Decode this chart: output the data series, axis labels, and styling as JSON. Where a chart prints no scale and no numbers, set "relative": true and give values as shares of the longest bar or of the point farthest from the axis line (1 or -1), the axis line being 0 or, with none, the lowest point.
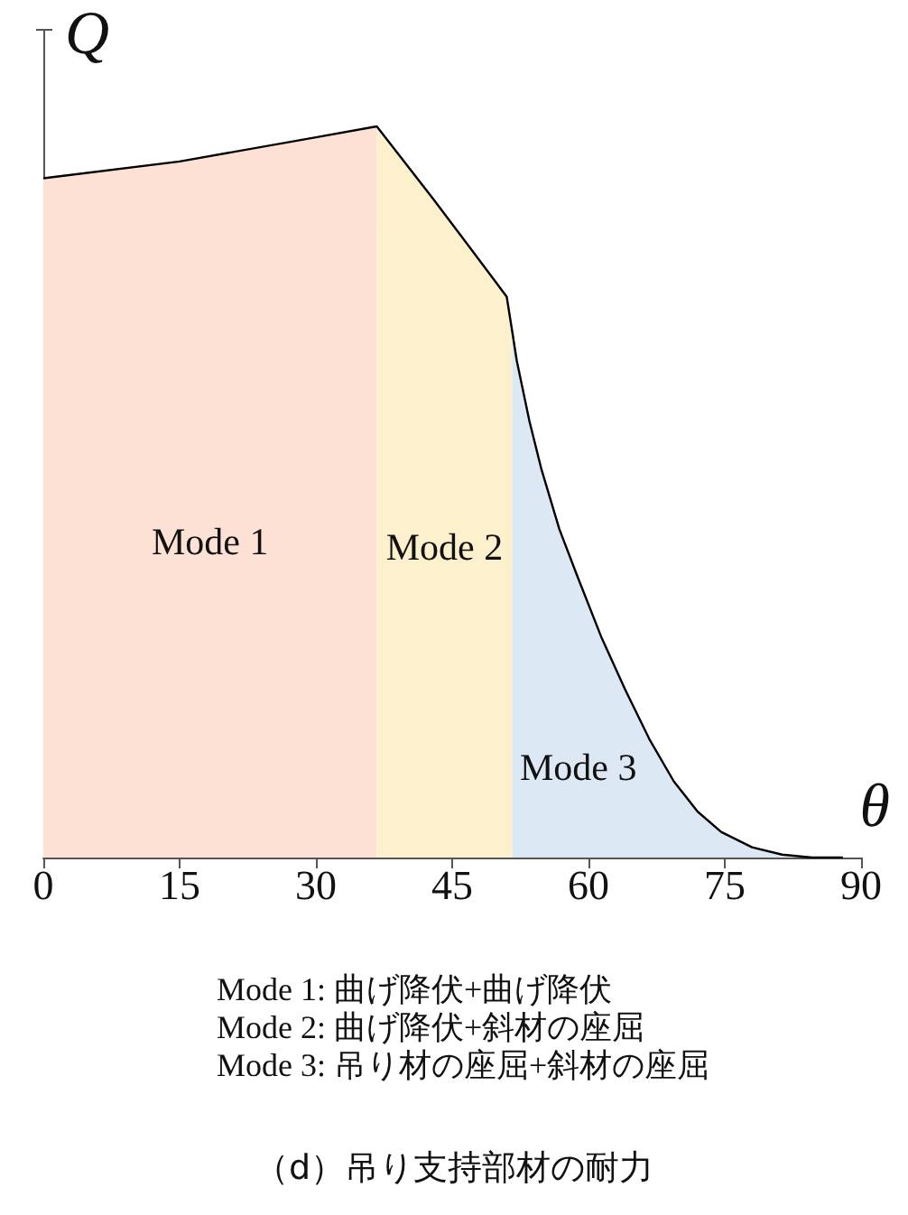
{
  "chart_data": {
    "type": "area",
    "title": "（d）吊り支持部材の耐力",
    "xlabel": "θ",
    "ylabel": "Q",
    "relative": true,
    "xlim": [
      0,
      90
    ],
    "xticks": [
      0,
      15,
      30,
      45,
      60,
      75,
      90
    ],
    "grid": false,
    "marker": "none",
    "series": [
      {
        "color": "#fde1d4",
        "x": [
          0,
          15,
          30,
          36.7
        ],
        "values": [
          0.929,
          0.952,
          0.985,
          1
        ]
      },
      {
        "color": "#fdf0cc",
        "x": [
          36.7,
          42.9,
          49.5,
          51.0,
          51.6
        ],
        "values": [
          1,
          0.901,
          0.792,
          0.767,
          0.72
        ]
      },
      {
        "color": "#dde8f5",
        "x": [
          51.6,
          52.1,
          53.5,
          54.8,
          56.8,
          58.8,
          61.4,
          64.1,
          66.7,
          69.4,
          72.0,
          74.6,
          78.0,
          81.3,
          84.6,
          88
        ],
        "values": [
          0.72,
          0.68,
          0.597,
          0.532,
          0.449,
          0.384,
          0.302,
          0.228,
          0.162,
          0.104,
          0.063,
          0.035,
          0.014,
          0.004,
          0,
          0
        ]
      },
      {
        "type": "line",
        "color": "#000000",
        "x": [
          0,
          15,
          30,
          36.7,
          42.9,
          49.5,
          51.0,
          51.6,
          52.1,
          53.5,
          54.8,
          56.8,
          58.8,
          61.4,
          64.1,
          66.7,
          69.4,
          72.0,
          74.6,
          78.0,
          81.3,
          84.6,
          88
        ],
        "values": [
          0.929,
          0.952,
          0.985,
          1,
          0.901,
          0.792,
          0.767,
          0.72,
          0.68,
          0.597,
          0.532,
          0.449,
          0.384,
          0.302,
          0.228,
          0.162,
          0.104,
          0.063,
          0.035,
          0.014,
          0.004,
          0,
          0
        ]
      }
    ],
    "annotations": [
      "Mode 1",
      "Mode 2",
      "Mode 3",
      "Mode 1: 曲げ降伏+曲げ降伏",
      "Mode 2: 曲げ降伏+斜材の座屈",
      "Mode 3: 吊り材の座屈+斜材の座屈"
    ]
  }
}
